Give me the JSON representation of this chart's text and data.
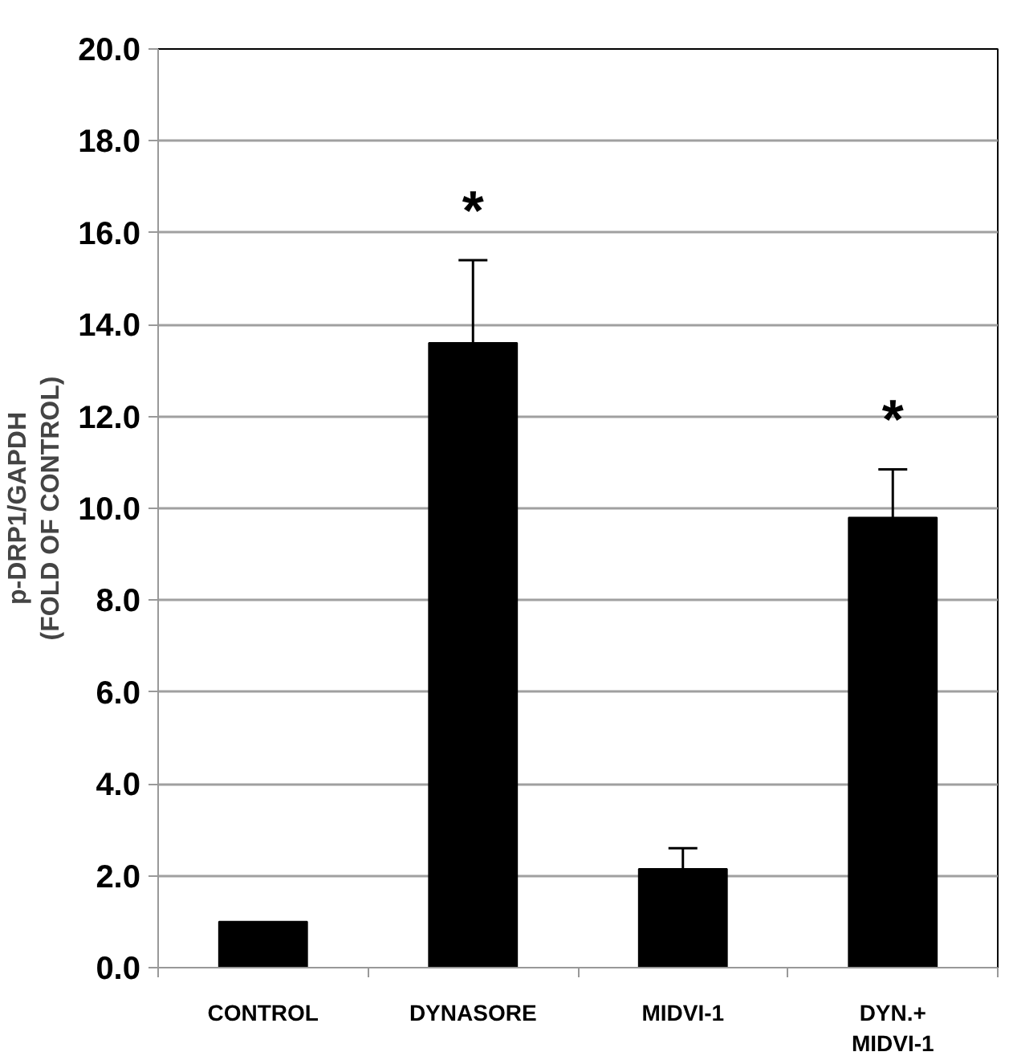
{
  "chart_data": {
    "type": "bar",
    "ylabel": "p-DRP1/GAPDH\n(FOLD OF CONTROL)",
    "categories": [
      "CONTROL",
      "DYNASORE",
      "MIDVI-1",
      "DYN.+\nMIDVI-1"
    ],
    "values": [
      1.0,
      13.6,
      2.15,
      9.8
    ],
    "errors": [
      null,
      [
        13.6,
        15.4
      ],
      [
        2.15,
        2.6
      ],
      [
        9.8,
        10.85
      ]
    ],
    "color": "#000000",
    "ylim": [
      0,
      20
    ],
    "yticks": [
      {
        "value": 0,
        "label": "0.0"
      },
      {
        "value": 2,
        "label": "2.0"
      },
      {
        "value": 4,
        "label": "4.0"
      },
      {
        "value": 6,
        "label": "6.0"
      },
      {
        "value": 8,
        "label": "8.0"
      },
      {
        "value": 10,
        "label": "10.0"
      },
      {
        "value": 12,
        "label": "12.0"
      },
      {
        "value": 14,
        "label": "14.0"
      },
      {
        "value": 16,
        "label": "16.0"
      },
      {
        "value": 18,
        "label": "18.0"
      },
      {
        "value": 20,
        "label": "20.0"
      }
    ],
    "grid": "y",
    "annotations": [
      "*",
      "*"
    ]
  }
}
